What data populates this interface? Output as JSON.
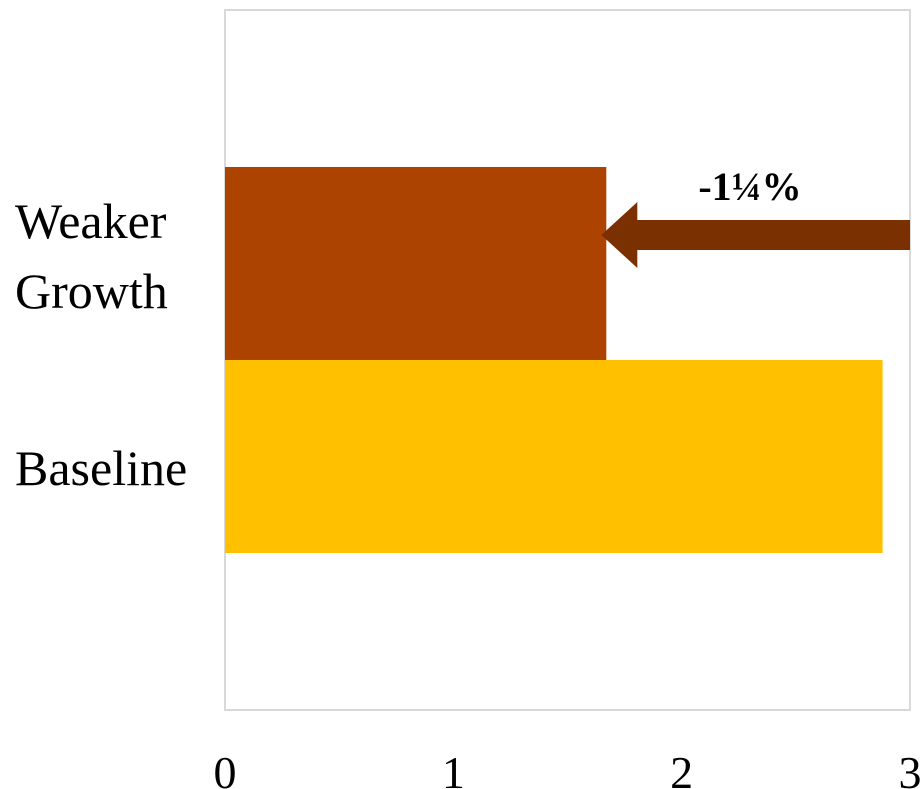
{
  "chart_data": {
    "type": "bar",
    "orientation": "horizontal",
    "categories": [
      "Weaker Growth",
      "Baseline"
    ],
    "category_lines": [
      [
        "Weaker",
        "Growth"
      ],
      [
        "Baseline"
      ]
    ],
    "values": [
      1.67,
      2.88
    ],
    "colors": [
      "#AD4300",
      "#FFC000"
    ],
    "xlim": [
      0,
      3
    ],
    "xticks": [
      "0",
      "1",
      "2",
      "3"
    ],
    "title": "",
    "xlabel": "",
    "ylabel": "",
    "grid": false,
    "legend": "none",
    "annotation": {
      "text": "-1¼%",
      "arrow_color": "#7A3000",
      "arrow_from_value": 3.0,
      "arrow_to_value": 1.67
    }
  }
}
